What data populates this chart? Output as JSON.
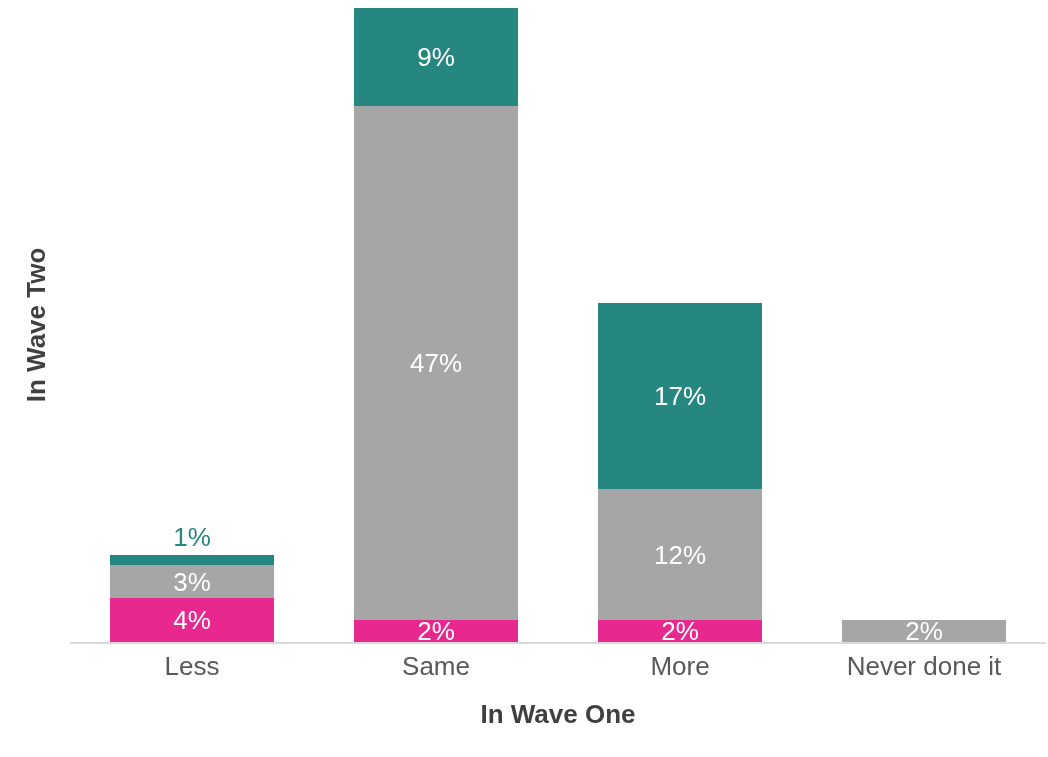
{
  "chart_data": {
    "type": "bar",
    "stacked": true,
    "xlabel": "In Wave One",
    "ylabel": "In Wave Two",
    "categories": [
      "Less",
      "Same",
      "More",
      "Never done it"
    ],
    "series": [
      {
        "color": "#e8288f",
        "values": [
          4,
          2,
          2,
          null
        ],
        "value_labels": [
          "4%",
          "2%",
          "2%",
          null
        ]
      },
      {
        "color": "#a6a6a6",
        "values": [
          3,
          47,
          12,
          2
        ],
        "value_labels": [
          "3%",
          "47%",
          "12%",
          "2%"
        ]
      },
      {
        "color": "#268781",
        "values": [
          1,
          9,
          17,
          null
        ],
        "value_labels": [
          "1%",
          "9%",
          "17%",
          null
        ]
      }
    ],
    "legend": false
  }
}
